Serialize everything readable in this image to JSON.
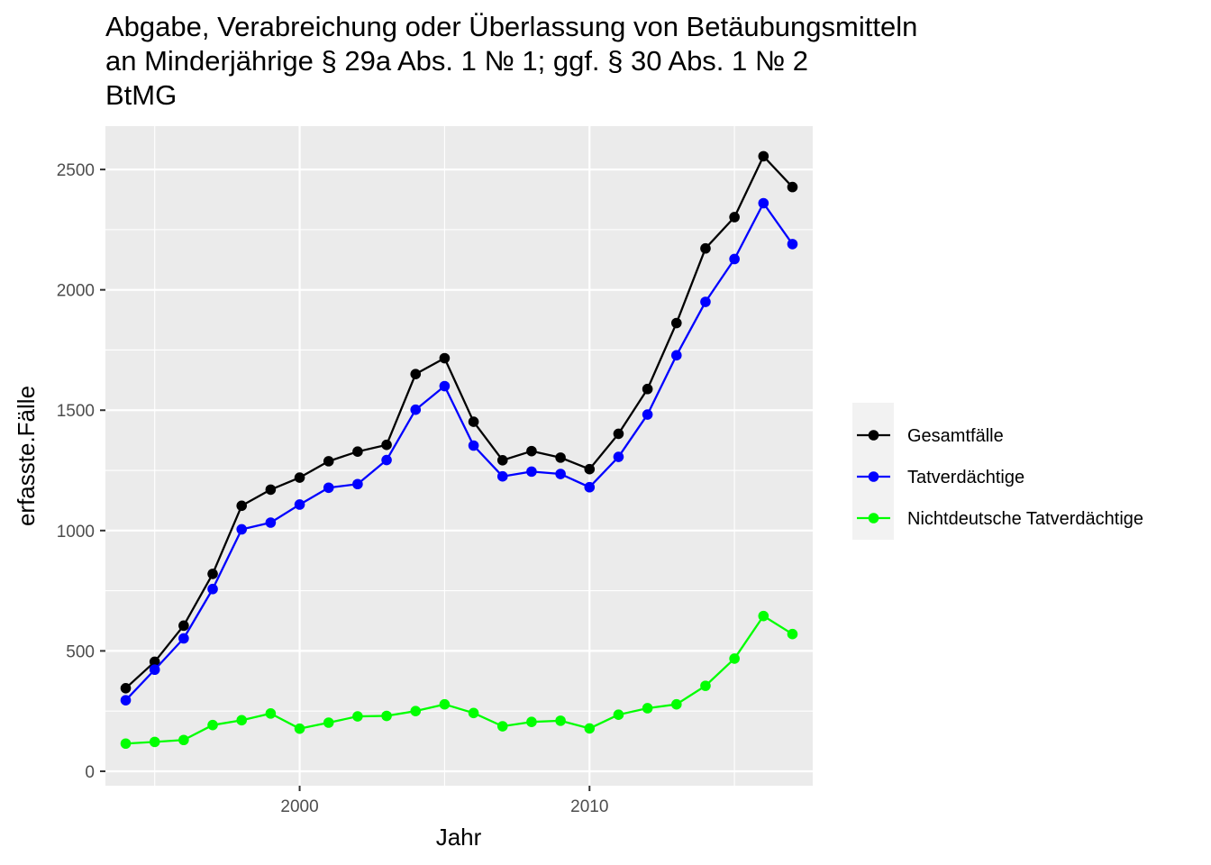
{
  "chart_data": {
    "type": "line",
    "title_lines": [
      "Abgabe, Verabreichung oder Überlassung von Betäubungsmitteln",
      "an Minderjährige § 29a Abs. 1 № 1; ggf. § 30 Abs. 1 № 2",
      "BtMG"
    ],
    "xlabel": "Jahr",
    "ylabel": "erfasste.Fälle",
    "xlim": [
      1993.3,
      2017.7
    ],
    "ylim": [
      -60,
      2680
    ],
    "x_ticks": [
      2000,
      2010
    ],
    "y_ticks": [
      0,
      500,
      1000,
      1500,
      2000,
      2500
    ],
    "grid": true,
    "legend_position": "right",
    "x": [
      1994,
      1995,
      1996,
      1997,
      1998,
      1999,
      2000,
      2001,
      2002,
      2003,
      2004,
      2005,
      2006,
      2007,
      2008,
      2009,
      2010,
      2011,
      2012,
      2013,
      2014,
      2015,
      2016,
      2017
    ],
    "series": [
      {
        "name": "Gesamtfälle",
        "color": "#000000",
        "values": [
          345,
          455,
          605,
          820,
          1103,
          1170,
          1220,
          1288,
          1328,
          1356,
          1650,
          1716,
          1452,
          1292,
          1330,
          1303,
          1255,
          1402,
          1588,
          1862,
          2172,
          2302,
          2555,
          2427
        ]
      },
      {
        "name": "Tatverdächtige",
        "color": "#0000ff",
        "values": [
          295,
          422,
          552,
          757,
          1005,
          1033,
          1108,
          1178,
          1193,
          1293,
          1502,
          1600,
          1353,
          1225,
          1245,
          1235,
          1180,
          1306,
          1482,
          1728,
          1950,
          2128,
          2360,
          2190
        ]
      },
      {
        "name": "Nichtdeutsche Tatverdächtige",
        "color": "#00ff00",
        "values": [
          115,
          122,
          130,
          192,
          212,
          240,
          177,
          202,
          228,
          230,
          250,
          278,
          242,
          187,
          205,
          210,
          178,
          235,
          262,
          278,
          355,
          468,
          645,
          570
        ]
      }
    ]
  }
}
